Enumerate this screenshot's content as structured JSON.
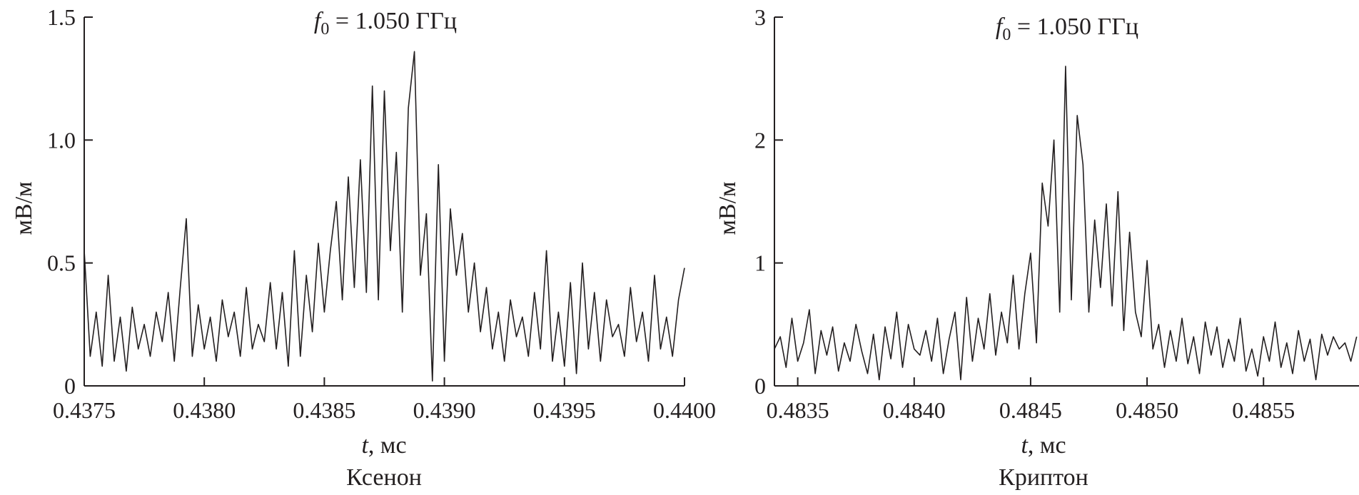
{
  "chart_data": [
    {
      "type": "line",
      "title_var": "f",
      "title_sub": "0",
      "title_rest": " = 1.050 ГГц",
      "xlabel_var": "t",
      "xlabel_rest": ", мс",
      "ylabel": "мВ/м",
      "caption": "Ксенон",
      "xlim": [
        0.4375,
        0.44
      ],
      "ylim": [
        0,
        1.5
      ],
      "xticks": [
        0.4375,
        0.438,
        0.4385,
        0.439,
        0.4395,
        0.44
      ],
      "xtick_labels": [
        "0.4375",
        "0.4380",
        "0.4385",
        "0.4390",
        "0.4395",
        "0.4400"
      ],
      "yticks": [
        0,
        0.5,
        1.0,
        1.5
      ],
      "ytick_labels": [
        "0",
        "0.5",
        "1.0",
        "1.5"
      ],
      "grid": false,
      "line_color": "#231f20",
      "x": [
        0.4375,
        0.437525,
        0.43755,
        0.437575,
        0.4376,
        0.437625,
        0.43765,
        0.437675,
        0.4377,
        0.437725,
        0.43775,
        0.437775,
        0.4378,
        0.437825,
        0.43785,
        0.437875,
        0.4379,
        0.437925,
        0.43795,
        0.437975,
        0.438,
        0.438025,
        0.43805,
        0.438075,
        0.4381,
        0.438125,
        0.43815,
        0.438175,
        0.4382,
        0.438225,
        0.43825,
        0.438275,
        0.4383,
        0.438325,
        0.43835,
        0.438375,
        0.4384,
        0.438425,
        0.43845,
        0.438475,
        0.4385,
        0.438525,
        0.43855,
        0.438575,
        0.4386,
        0.438625,
        0.43865,
        0.438675,
        0.4387,
        0.438725,
        0.43875,
        0.438775,
        0.4388,
        0.438825,
        0.43885,
        0.438875,
        0.4389,
        0.438925,
        0.43895,
        0.438975,
        0.439,
        0.439025,
        0.43905,
        0.439075,
        0.4391,
        0.439125,
        0.43915,
        0.439175,
        0.4392,
        0.439225,
        0.43925,
        0.439275,
        0.4393,
        0.439325,
        0.43935,
        0.439375,
        0.4394,
        0.439425,
        0.43945,
        0.439475,
        0.4395,
        0.439525,
        0.43955,
        0.439575,
        0.4396,
        0.439625,
        0.43965,
        0.439675,
        0.4397,
        0.439725,
        0.43975,
        0.439775,
        0.4398,
        0.439825,
        0.43985,
        0.439875,
        0.4399,
        0.439925,
        0.43995,
        0.439975,
        0.44
      ],
      "y": [
        0.55,
        0.12,
        0.3,
        0.08,
        0.45,
        0.1,
        0.28,
        0.06,
        0.32,
        0.15,
        0.25,
        0.12,
        0.3,
        0.18,
        0.38,
        0.1,
        0.4,
        0.68,
        0.12,
        0.33,
        0.15,
        0.28,
        0.1,
        0.35,
        0.2,
        0.3,
        0.12,
        0.4,
        0.15,
        0.25,
        0.18,
        0.42,
        0.15,
        0.38,
        0.08,
        0.55,
        0.12,
        0.45,
        0.22,
        0.58,
        0.3,
        0.55,
        0.75,
        0.35,
        0.85,
        0.4,
        0.92,
        0.38,
        1.22,
        0.35,
        1.2,
        0.55,
        0.95,
        0.3,
        1.13,
        1.36,
        0.45,
        0.7,
        0.02,
        0.9,
        0.1,
        0.72,
        0.45,
        0.62,
        0.3,
        0.5,
        0.22,
        0.4,
        0.15,
        0.3,
        0.1,
        0.35,
        0.2,
        0.28,
        0.12,
        0.38,
        0.15,
        0.55,
        0.1,
        0.3,
        0.08,
        0.42,
        0.05,
        0.5,
        0.15,
        0.38,
        0.1,
        0.35,
        0.2,
        0.25,
        0.12,
        0.4,
        0.18,
        0.3,
        0.1,
        0.45,
        0.15,
        0.28,
        0.12,
        0.35,
        0.48
      ]
    },
    {
      "type": "line",
      "title_var": "f",
      "title_sub": "0",
      "title_rest": " = 1.050 ГГц",
      "xlabel_var": "t",
      "xlabel_rest": ", мс",
      "ylabel": "мВ/м",
      "caption": "Криптон",
      "xlim": [
        0.4834,
        0.48591
      ],
      "ylim": [
        0,
        3
      ],
      "xticks": [
        0.4835,
        0.484,
        0.4845,
        0.485,
        0.4855
      ],
      "xtick_labels": [
        "0.4835",
        "0.4840",
        "0.4845",
        "0.4850",
        "0.4855"
      ],
      "yticks": [
        0,
        1,
        2,
        3
      ],
      "ytick_labels": [
        "0",
        "1",
        "2",
        "3"
      ],
      "grid": false,
      "line_color": "#231f20",
      "x": [
        0.4834,
        0.483425,
        0.48345,
        0.483475,
        0.4835,
        0.483525,
        0.48355,
        0.483575,
        0.4836,
        0.483625,
        0.48365,
        0.483675,
        0.4837,
        0.483725,
        0.48375,
        0.483775,
        0.4838,
        0.483825,
        0.48385,
        0.483875,
        0.4839,
        0.483925,
        0.48395,
        0.483975,
        0.484,
        0.484025,
        0.48405,
        0.484075,
        0.4841,
        0.484125,
        0.48415,
        0.484175,
        0.4842,
        0.484225,
        0.48425,
        0.484275,
        0.4843,
        0.484325,
        0.48435,
        0.484375,
        0.4844,
        0.484425,
        0.48445,
        0.484475,
        0.4845,
        0.484525,
        0.48455,
        0.484575,
        0.4846,
        0.484625,
        0.48465,
        0.484675,
        0.4847,
        0.484725,
        0.48475,
        0.484775,
        0.4848,
        0.484825,
        0.48485,
        0.484875,
        0.4849,
        0.484925,
        0.48495,
        0.484975,
        0.485,
        0.485025,
        0.48505,
        0.485075,
        0.4851,
        0.485125,
        0.48515,
        0.485175,
        0.4852,
        0.485225,
        0.48525,
        0.485275,
        0.4853,
        0.485325,
        0.48535,
        0.485375,
        0.4854,
        0.485425,
        0.48545,
        0.485475,
        0.4855,
        0.485525,
        0.48555,
        0.485575,
        0.4856,
        0.485625,
        0.48565,
        0.485675,
        0.4857,
        0.485725,
        0.48575,
        0.485775,
        0.4858,
        0.485825,
        0.48585,
        0.485875,
        0.4859
      ],
      "y": [
        0.3,
        0.4,
        0.15,
        0.55,
        0.2,
        0.35,
        0.62,
        0.1,
        0.45,
        0.25,
        0.48,
        0.12,
        0.35,
        0.2,
        0.5,
        0.28,
        0.1,
        0.42,
        0.05,
        0.48,
        0.22,
        0.6,
        0.15,
        0.5,
        0.3,
        0.25,
        0.45,
        0.2,
        0.55,
        0.1,
        0.38,
        0.6,
        0.05,
        0.72,
        0.2,
        0.55,
        0.3,
        0.75,
        0.25,
        0.6,
        0.35,
        0.9,
        0.3,
        0.75,
        1.08,
        0.35,
        1.65,
        1.3,
        2.0,
        0.6,
        2.6,
        0.7,
        2.2,
        1.8,
        0.6,
        1.35,
        0.8,
        1.48,
        0.65,
        1.58,
        0.45,
        1.25,
        0.6,
        0.4,
        1.02,
        0.3,
        0.5,
        0.15,
        0.45,
        0.2,
        0.55,
        0.18,
        0.4,
        0.1,
        0.52,
        0.25,
        0.48,
        0.15,
        0.38,
        0.2,
        0.55,
        0.12,
        0.3,
        0.08,
        0.4,
        0.2,
        0.52,
        0.15,
        0.35,
        0.1,
        0.45,
        0.2,
        0.38,
        0.05,
        0.42,
        0.25,
        0.4,
        0.3,
        0.35,
        0.2,
        0.4
      ]
    }
  ]
}
